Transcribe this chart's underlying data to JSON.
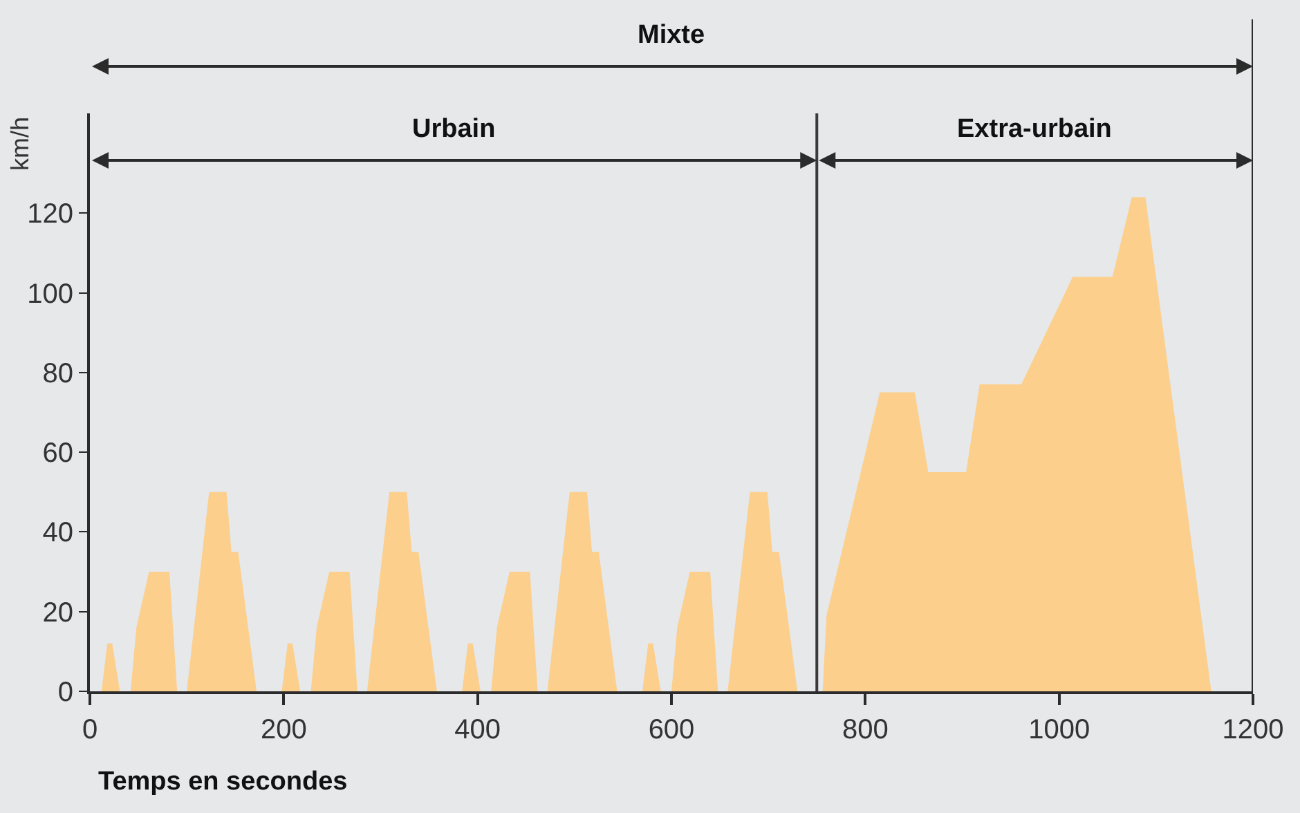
{
  "chart_data": {
    "type": "area",
    "xlabel": "Temps en secondes",
    "ylabel": "km/h",
    "x": [
      0,
      12,
      18,
      23,
      31,
      42,
      48,
      61,
      82,
      90,
      100,
      123,
      141,
      146,
      153,
      172,
      186,
      198,
      204,
      209,
      217,
      228,
      234,
      247,
      268,
      276,
      286,
      309,
      327,
      332,
      339,
      358,
      372,
      384,
      390,
      395,
      403,
      414,
      420,
      433,
      454,
      462,
      472,
      495,
      513,
      518,
      525,
      544,
      558,
      570,
      576,
      581,
      589,
      600,
      606,
      619,
      640,
      648,
      658,
      681,
      699,
      704,
      711,
      730,
      756,
      760,
      815,
      851,
      865,
      904,
      918,
      961,
      1014,
      1055,
      1075,
      1089,
      1157
    ],
    "series": [
      {
        "color": "#fccf8c",
        "values": [
          0,
          0,
          12,
          12,
          0,
          0,
          16,
          30,
          30,
          0,
          0,
          50,
          50,
          35,
          35,
          0,
          0,
          0,
          12,
          12,
          0,
          0,
          16,
          30,
          30,
          0,
          0,
          50,
          50,
          35,
          35,
          0,
          0,
          0,
          12,
          12,
          0,
          0,
          16,
          30,
          30,
          0,
          0,
          50,
          50,
          35,
          35,
          0,
          0,
          0,
          12,
          12,
          0,
          0,
          16,
          30,
          30,
          0,
          0,
          50,
          50,
          35,
          35,
          0,
          0,
          19,
          75,
          75,
          55,
          55,
          77,
          77,
          104,
          104,
          124,
          124,
          0
        ]
      }
    ],
    "xlim": [
      0,
      1200
    ],
    "xticks": [
      0,
      200,
      400,
      600,
      800,
      1000,
      1200
    ],
    "ylim": [
      0,
      145
    ],
    "yticks": [
      0,
      20,
      40,
      60,
      80,
      100,
      120
    ],
    "grid": false,
    "ref_lines": [
      {
        "axis": "x",
        "value": 750,
        "color": "#3a3a3a"
      }
    ],
    "annotations": [
      "Mixte",
      "Urbain",
      "Extra-urbain"
    ]
  }
}
